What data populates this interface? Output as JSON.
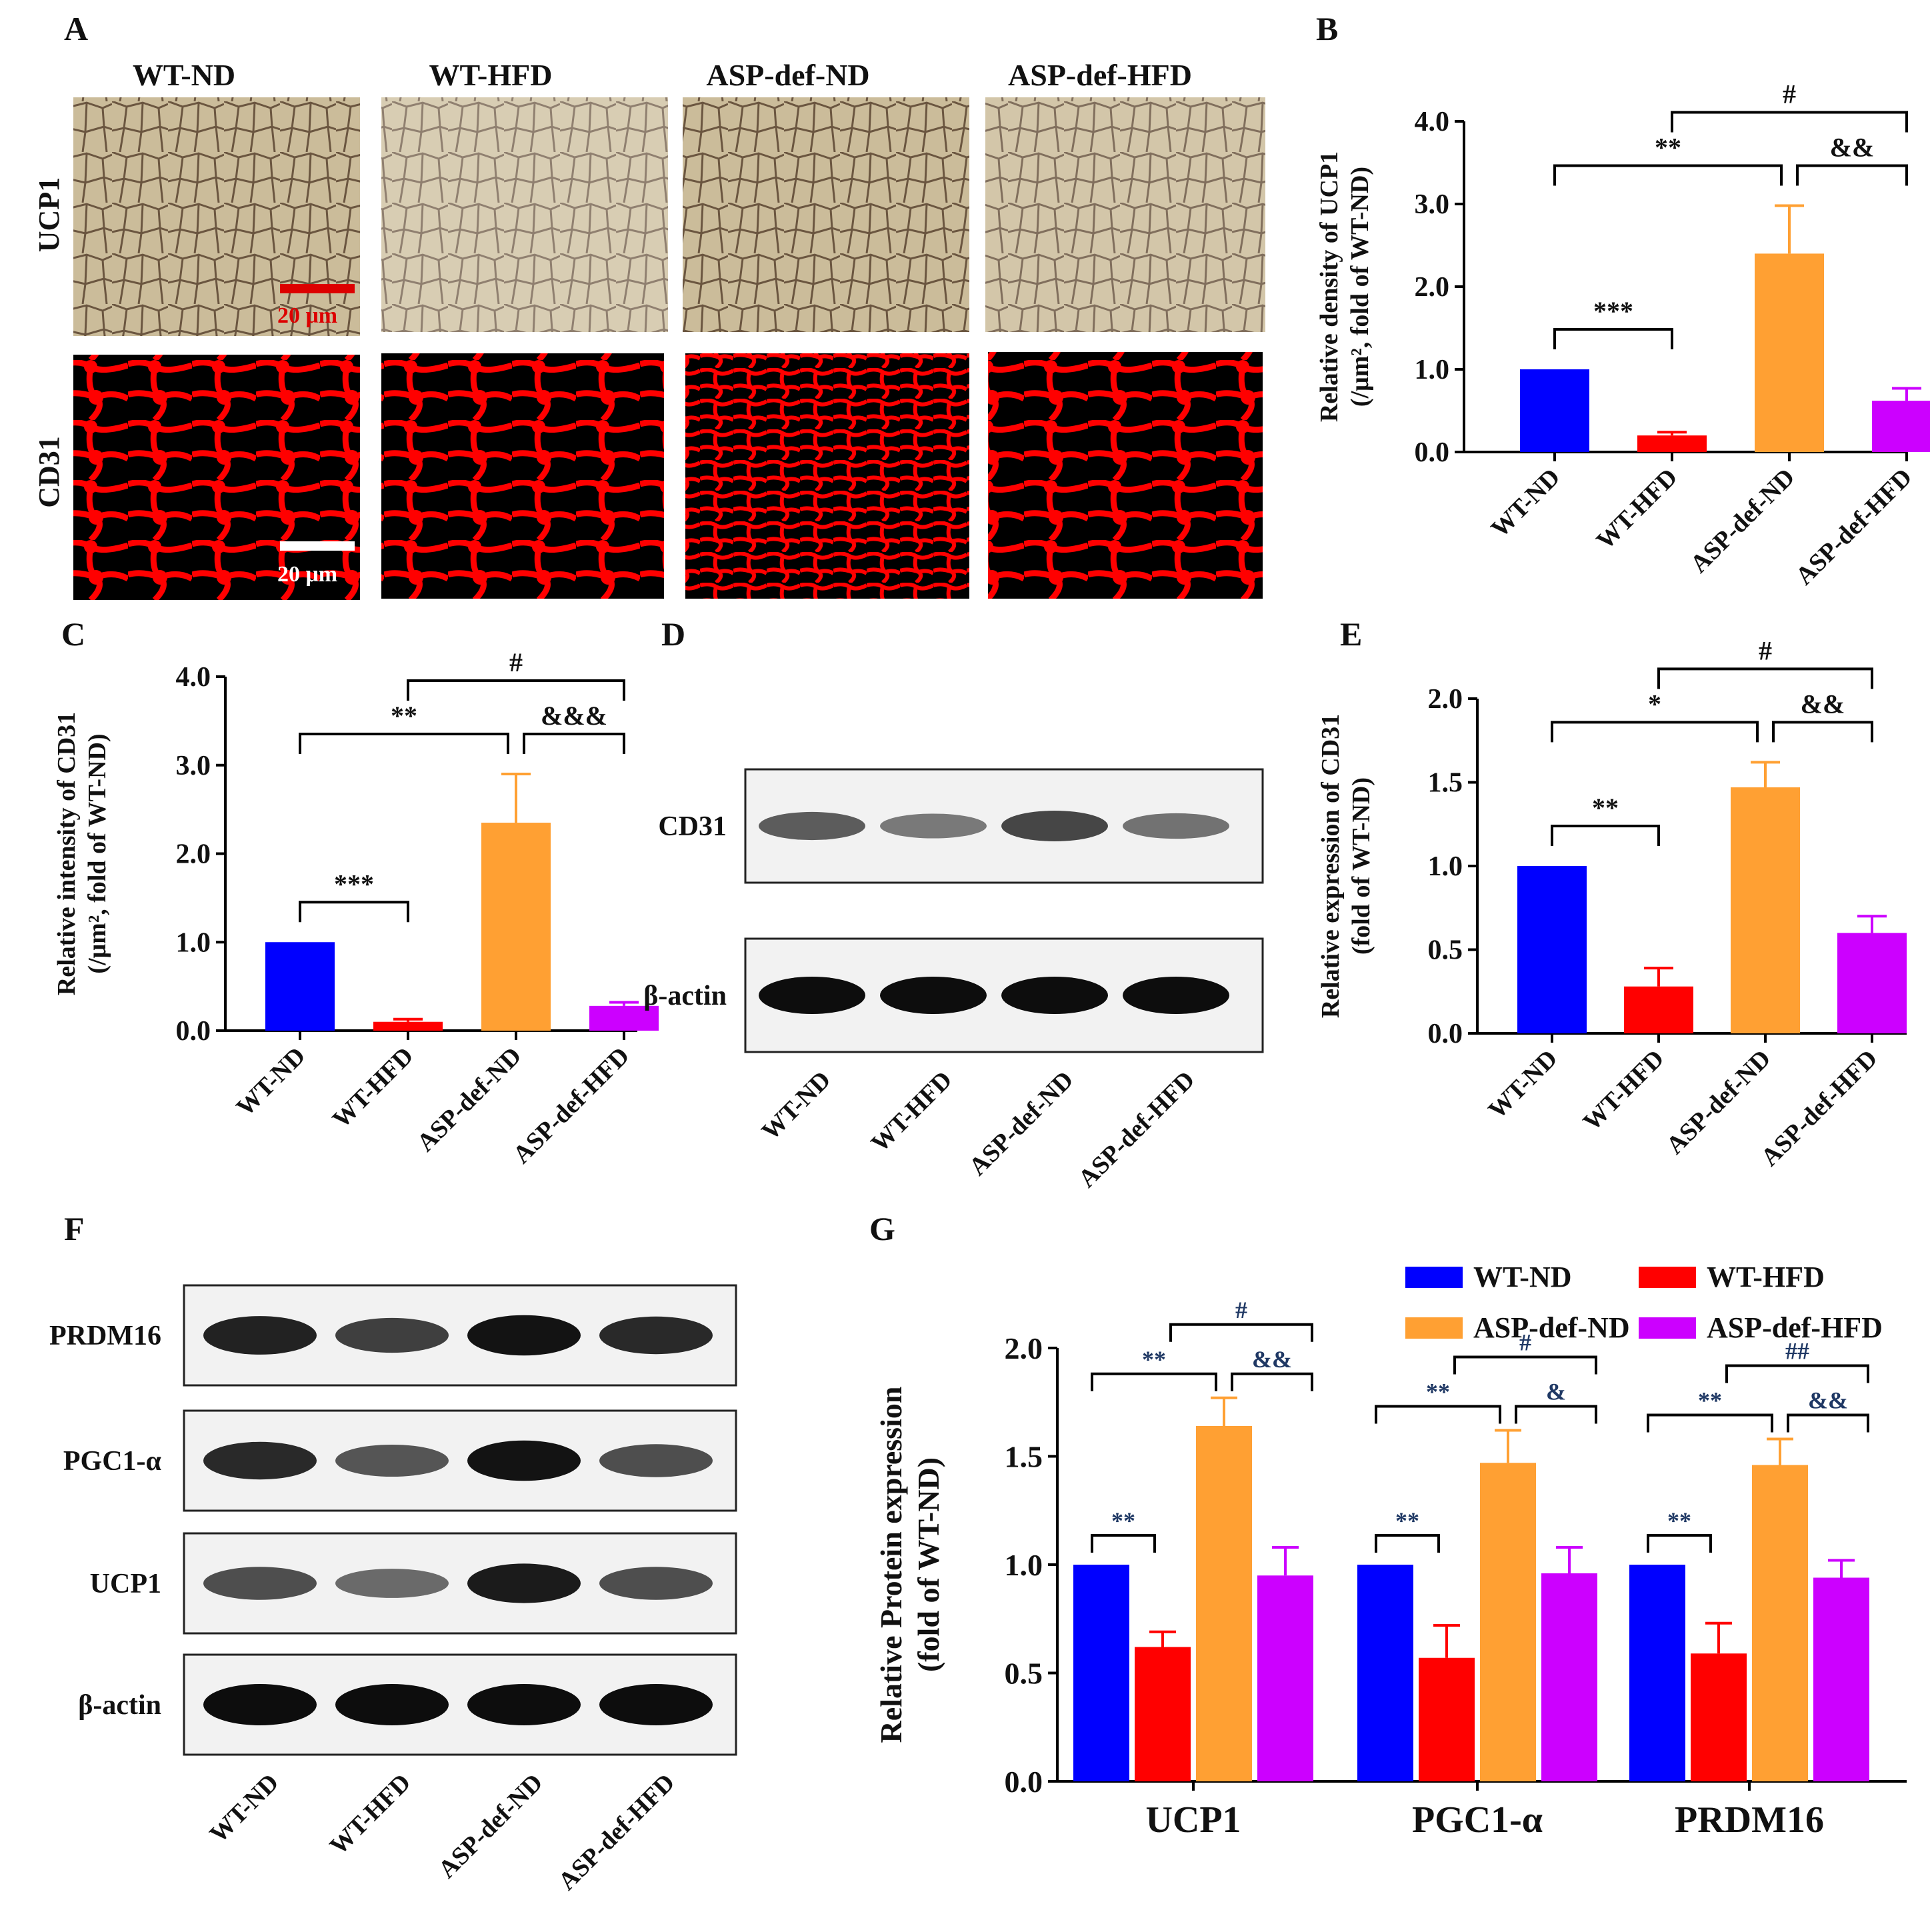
{
  "colors": {
    "wt_nd": "#0000ff",
    "wt_hfd": "#ff0000",
    "asp_nd": "#ffa033",
    "asp_hfd": "#cc00ff",
    "micro_ucp1_bg": "#cdbd99",
    "micro_ucp1_line": "#6d5840",
    "micro_cd31": "#ff0000",
    "scale_ucp1": "#dd0000"
  },
  "panels": {
    "A": "A",
    "B": "B",
    "C": "C",
    "D": "D",
    "E": "E",
    "F": "F",
    "G": "G"
  },
  "groups": [
    "WT-ND",
    "WT-HFD",
    "ASP-def-ND",
    "ASP-def-HFD"
  ],
  "micro": {
    "row_ucp1": "UCP1",
    "row_cd31": "CD31",
    "scale_label": "20 μm"
  },
  "blots": {
    "D_bands": [
      {
        "label": "CD31",
        "intensity": [
          0.45,
          0.25,
          0.6,
          0.3
        ]
      },
      {
        "label": "β-actin",
        "intensity": [
          1,
          1,
          1,
          1
        ]
      }
    ],
    "F_bands": [
      {
        "label": "PRDM16",
        "intensity": [
          0.85,
          0.65,
          0.95,
          0.8
        ]
      },
      {
        "label": "PGC1-α",
        "intensity": [
          0.8,
          0.5,
          0.95,
          0.55
        ]
      },
      {
        "label": "UCP1",
        "intensity": [
          0.55,
          0.35,
          0.9,
          0.55
        ]
      },
      {
        "label": "β-actin",
        "intensity": [
          1,
          1,
          1,
          1
        ]
      }
    ]
  },
  "chart_data": [
    {
      "panel": "B",
      "type": "bar",
      "categories": [
        "WT-ND",
        "WT-HFD",
        "ASP-def-ND",
        "ASP-def-HFD"
      ],
      "values": [
        1.0,
        0.2,
        2.4,
        0.62
      ],
      "errors": [
        0.0,
        0.04,
        0.58,
        0.15
      ],
      "ylabel_line1": "Relative  density of UCP1",
      "ylabel_line2": "(/μm², fold of WT-ND)",
      "ylim": [
        0,
        4
      ],
      "yticks": [
        "0.0",
        "1.0",
        "2.0",
        "3.0",
        "4.0"
      ],
      "annotations": [
        {
          "text": "***",
          "from": 0,
          "to": 1
        },
        {
          "text": "**",
          "from": 0,
          "to": 2
        },
        {
          "text": "&&",
          "from": 2,
          "to": 3
        },
        {
          "text": "#",
          "from": 1,
          "to": 3
        }
      ]
    },
    {
      "panel": "C",
      "type": "bar",
      "categories": [
        "WT-ND",
        "WT-HFD",
        "ASP-def-ND",
        "ASP-def-HFD"
      ],
      "values": [
        1.0,
        0.1,
        2.35,
        0.28
      ],
      "errors": [
        0.0,
        0.03,
        0.55,
        0.04
      ],
      "ylabel_line1": "Relative intensity of CD31",
      "ylabel_line2": "(/μm², fold of WT-ND)",
      "ylim": [
        0,
        4
      ],
      "yticks": [
        "0.0",
        "1.0",
        "2.0",
        "3.0",
        "4.0"
      ],
      "annotations": [
        {
          "text": "***",
          "from": 0,
          "to": 1
        },
        {
          "text": "**",
          "from": 0,
          "to": 2
        },
        {
          "text": "&&&",
          "from": 2,
          "to": 3
        },
        {
          "text": "#",
          "from": 1,
          "to": 3
        }
      ]
    },
    {
      "panel": "E",
      "type": "bar",
      "categories": [
        "WT-ND",
        "WT-HFD",
        "ASP-def-ND",
        "ASP-def-HFD"
      ],
      "values": [
        1.0,
        0.28,
        1.47,
        0.6
      ],
      "errors": [
        0.0,
        0.11,
        0.15,
        0.1
      ],
      "ylabel_line1": "Relative expression of CD31",
      "ylabel_line2": "(fold of WT-ND)",
      "ylim": [
        0,
        2
      ],
      "yticks": [
        "0.0",
        "0.5",
        "1.0",
        "1.5",
        "2.0"
      ],
      "annotations": [
        {
          "text": "**",
          "from": 0,
          "to": 1
        },
        {
          "text": "*",
          "from": 0,
          "to": 2
        },
        {
          "text": "&&",
          "from": 2,
          "to": 3
        },
        {
          "text": "#",
          "from": 1,
          "to": 3
        }
      ]
    },
    {
      "panel": "G",
      "type": "bar",
      "categories": [
        "UCP1",
        "PGC1-α",
        "PRDM16"
      ],
      "series": [
        {
          "name": "WT-ND",
          "values": [
            1.0,
            1.0,
            1.0
          ],
          "errors": [
            0,
            0,
            0
          ]
        },
        {
          "name": "WT-HFD",
          "values": [
            0.62,
            0.57,
            0.59
          ],
          "errors": [
            0.07,
            0.15,
            0.14
          ]
        },
        {
          "name": "ASP-def-ND",
          "values": [
            1.64,
            1.47,
            1.46
          ],
          "errors": [
            0.13,
            0.15,
            0.12
          ]
        },
        {
          "name": "ASP-def-HFD",
          "values": [
            0.95,
            0.96,
            0.94
          ],
          "errors": [
            0.13,
            0.12,
            0.08
          ]
        }
      ],
      "ylabel_line1": "Relative Protein expression",
      "ylabel_line2": "(fold of WT-ND)",
      "ylim": [
        0,
        2
      ],
      "yticks": [
        "0.0",
        "0.5",
        "1.0",
        "1.5",
        "2.0"
      ],
      "legend_position": "top-right",
      "annotations": [
        {
          "group": 0,
          "items": [
            {
              "text": "**",
              "from": 0,
              "to": 1
            },
            {
              "text": "**",
              "from": 0,
              "to": 2
            },
            {
              "text": "&&",
              "from": 2,
              "to": 3
            },
            {
              "text": "#",
              "from": 1,
              "to": 3
            }
          ]
        },
        {
          "group": 1,
          "items": [
            {
              "text": "**",
              "from": 0,
              "to": 1
            },
            {
              "text": "**",
              "from": 0,
              "to": 2
            },
            {
              "text": "&",
              "from": 2,
              "to": 3
            },
            {
              "text": "#",
              "from": 1,
              "to": 3
            }
          ]
        },
        {
          "group": 2,
          "items": [
            {
              "text": "**",
              "from": 0,
              "to": 1
            },
            {
              "text": "**",
              "from": 0,
              "to": 2
            },
            {
              "text": "&&",
              "from": 2,
              "to": 3
            },
            {
              "text": "##",
              "from": 1,
              "to": 3
            }
          ]
        }
      ]
    }
  ]
}
